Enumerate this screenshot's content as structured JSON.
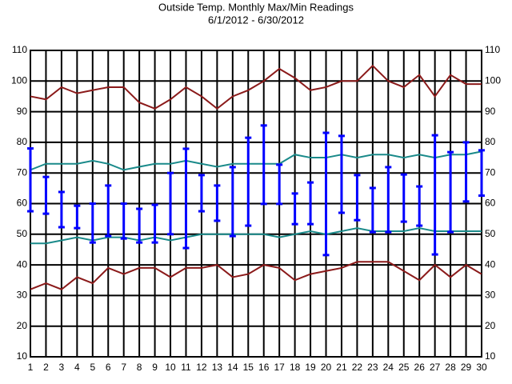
{
  "chart_data": {
    "type": "line",
    "title": "Outside Temp. Monthly Max/Min Readings",
    "subtitle": "6/1/2012 - 6/30/2012",
    "x": [
      1,
      2,
      3,
      4,
      5,
      6,
      7,
      8,
      9,
      10,
      11,
      12,
      13,
      14,
      15,
      16,
      17,
      18,
      19,
      20,
      21,
      22,
      23,
      24,
      25,
      26,
      27,
      28,
      29,
      30
    ],
    "xlim": [
      1,
      30
    ],
    "ylim": [
      10,
      110
    ],
    "yticks": [
      10,
      20,
      30,
      40,
      50,
      60,
      70,
      80,
      90,
      100,
      110
    ],
    "grid": true,
    "series": [
      {
        "color": "#8b1a1a",
        "values": [
          95,
          94,
          98,
          96,
          97,
          98,
          98,
          93,
          91,
          94,
          98,
          95,
          91,
          95,
          97,
          100,
          104,
          101,
          97,
          98,
          100,
          100,
          105,
          100,
          98,
          102,
          95,
          102,
          99,
          99
        ]
      },
      {
        "color": "#8b1a1a",
        "values": [
          32,
          34,
          32,
          36,
          34,
          39,
          37,
          39,
          39,
          36,
          39,
          39,
          40,
          36,
          37,
          40,
          39,
          35,
          37,
          38,
          39,
          41,
          41,
          41,
          38,
          35,
          40,
          36,
          40,
          37
        ]
      },
      {
        "color": "#1a8a8a",
        "values": [
          71,
          73,
          73,
          73,
          74,
          73,
          71,
          72,
          73,
          73,
          74,
          73,
          72,
          73,
          73,
          73,
          73,
          76,
          75,
          75,
          76,
          75,
          76,
          76,
          75,
          76,
          75,
          76,
          76,
          77
        ]
      },
      {
        "color": "#1a8a8a",
        "values": [
          47,
          47,
          48,
          49,
          48,
          49,
          49,
          48,
          49,
          48,
          49,
          50,
          50,
          50,
          50,
          50,
          49,
          50,
          51,
          50,
          51,
          52,
          51,
          51,
          51,
          52,
          51,
          51,
          51,
          51
        ]
      }
    ],
    "ranges": {
      "color": "#0000ff",
      "high": [
        78,
        68.7,
        63.8,
        59.3,
        60,
        65.9,
        60,
        58.3,
        59.6,
        70,
        77.9,
        69.3,
        65.9,
        71.9,
        81.5,
        85.5,
        72.7,
        63.3,
        66.9,
        83.1,
        82.1,
        69.3,
        65.1,
        71.9,
        69.5,
        65.6,
        82.3,
        76.8,
        80,
        77.4
      ],
      "low": [
        57.5,
        56.7,
        52.3,
        52,
        47.3,
        49.4,
        48.6,
        47.3,
        47.3,
        50,
        45.5,
        57.5,
        54.4,
        49.4,
        52.8,
        59.9,
        59.9,
        53.3,
        53.3,
        43.2,
        57,
        54.6,
        50.7,
        50.7,
        54.1,
        52.8,
        43.4,
        50.7,
        60.7,
        62.6
      ]
    }
  }
}
